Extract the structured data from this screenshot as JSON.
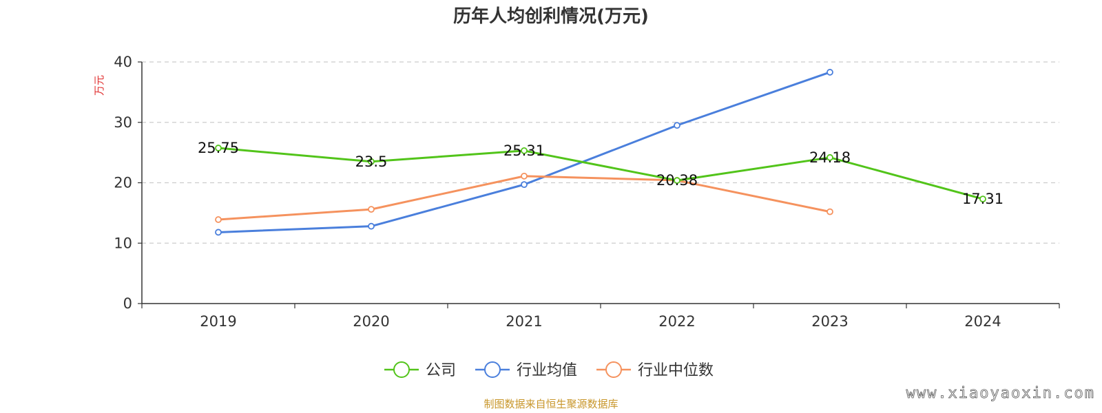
{
  "chart_data": {
    "type": "line",
    "title": "历年人均创利情况(万元)",
    "ylabel": "万元",
    "xlabel": "",
    "categories": [
      "2019",
      "2020",
      "2021",
      "2022",
      "2023",
      "2024"
    ],
    "ylim": [
      0,
      40
    ],
    "yticks": [
      0,
      10,
      20,
      30,
      40
    ],
    "grid": true,
    "legend_position": "bottom",
    "series": [
      {
        "name": "公司",
        "color": "#52c41a",
        "values": [
          25.75,
          23.5,
          25.31,
          20.38,
          24.18,
          17.31
        ],
        "labels": [
          "25.75",
          "23.5",
          "25.31",
          "20.38",
          "24.18",
          "17.31"
        ]
      },
      {
        "name": "行业均值",
        "color": "#4a7fdc",
        "values": [
          11.8,
          12.8,
          19.7,
          29.5,
          38.3,
          null
        ]
      },
      {
        "name": "行业中位数",
        "color": "#f5925e",
        "values": [
          13.9,
          15.6,
          21.1,
          20.4,
          15.2,
          null
        ]
      }
    ]
  },
  "source_note": "制图数据来自恒生聚源数据库",
  "watermark": "www.xiaoyaoxin.com"
}
